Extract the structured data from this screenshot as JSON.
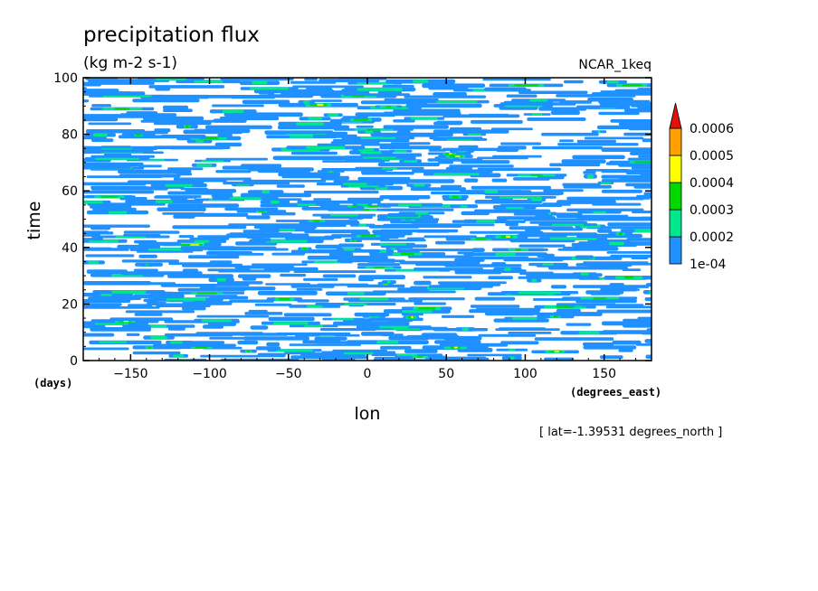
{
  "chart_data": {
    "type": "heatmap",
    "title": "precipitation flux",
    "units": "(kg m-2 s-1)",
    "dataset_label": "NCAR_1keq",
    "xlabel": "lon",
    "ylabel": "time",
    "x_units": "(degrees_east)",
    "y_units": "(days)",
    "xlim": [
      -180,
      180
    ],
    "ylim": [
      0,
      100
    ],
    "x_ticks": [
      -150,
      -100,
      -50,
      0,
      50,
      100,
      150
    ],
    "y_ticks": [
      0,
      20,
      40,
      60,
      80,
      100
    ],
    "footnote": "[ lat=-1.39531 degrees_north ]",
    "colorbar": {
      "levels": [
        "1e-04",
        "0.0002",
        "0.0003",
        "0.0004",
        "0.0005",
        "0.0006"
      ],
      "colors": [
        "#1e90ff",
        "#00e88c",
        "#00d800",
        "#ffff00",
        "#ffa000",
        "#e01010"
      ],
      "extend": "max"
    },
    "field_note": "band-like precipitation streaks, enhanced near lon 0-40 and around time 15-25 and 40-60"
  }
}
